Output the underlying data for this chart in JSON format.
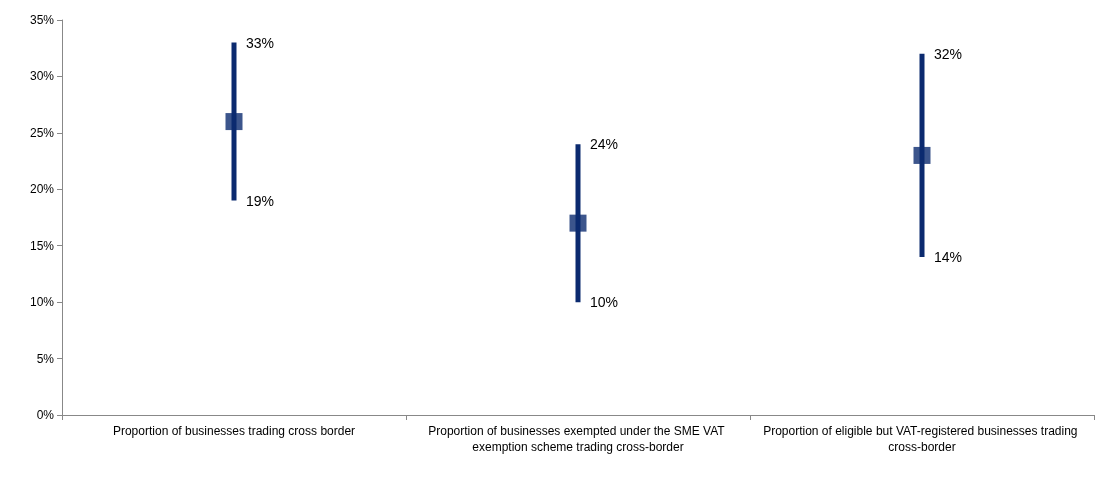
{
  "chart_data": {
    "type": "scatter",
    "categories": [
      "Proportion of businesses trading cross border",
      "Proportion of businesses exempted under the SME VAT exemption scheme trading cross-border",
      "Proportion of eligible but VAT-registered businesses trading cross-border"
    ],
    "values": [
      26,
      17,
      23
    ],
    "errors": [
      [
        19,
        33
      ],
      [
        10,
        24
      ],
      [
        14,
        32
      ]
    ],
    "color": "#0b2a6f",
    "marker": "square",
    "ylim": [
      0,
      35
    ],
    "yticks": [
      {
        "value": 0,
        "label": "0%"
      },
      {
        "value": 5,
        "label": "5%"
      },
      {
        "value": 10,
        "label": "10%"
      },
      {
        "value": 15,
        "label": "15%"
      },
      {
        "value": 20,
        "label": "20%"
      },
      {
        "value": 25,
        "label": "25%"
      },
      {
        "value": 30,
        "label": "30%"
      },
      {
        "value": 35,
        "label": "35%"
      }
    ],
    "annotations": [
      {
        "text": "33%",
        "x": "Proportion of businesses trading cross border",
        "y": 33
      },
      {
        "text": "19%",
        "x": "Proportion of businesses trading cross border",
        "y": 19
      },
      {
        "text": "24%",
        "x": "Proportion of businesses exempted under the SME VAT exemption scheme trading cross-border",
        "y": 24
      },
      {
        "text": "10%",
        "x": "Proportion of businesses exempted under the SME VAT exemption scheme trading cross-border",
        "y": 10
      },
      {
        "text": "32%",
        "x": "Proportion of eligible but VAT-registered businesses trading cross-border",
        "y": 32
      },
      {
        "text": "14%",
        "x": "Proportion of eligible but VAT-registered businesses trading cross-border",
        "y": 14
      }
    ]
  }
}
